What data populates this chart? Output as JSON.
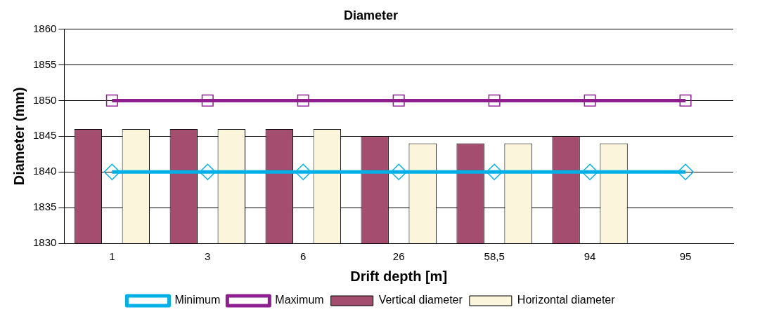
{
  "chart_data": {
    "type": "bar",
    "title": "Diameter",
    "xlabel": "Drift depth [m]",
    "ylabel": "Diameter (mm)",
    "categories": [
      "1",
      "3",
      "6",
      "26",
      "58,5",
      "94",
      "95"
    ],
    "series": [
      {
        "name": "Vertical diameter",
        "color": "#a44d6e",
        "values": [
          1846,
          1846,
          1846,
          1845,
          1844,
          1845,
          null
        ]
      },
      {
        "name": "Horizontal diameter",
        "color": "#faf5db",
        "values": [
          1846,
          1846,
          1846,
          1844,
          1844,
          1844,
          null
        ]
      },
      {
        "name": "Minimum",
        "type": "line",
        "color": "#00b0e6",
        "marker": "diamond",
        "values": [
          1840,
          1840,
          1840,
          1840,
          1840,
          1840,
          1840
        ]
      },
      {
        "name": "Maximum",
        "type": "line",
        "color": "#8e1f8e",
        "marker": "square",
        "values": [
          1850,
          1850,
          1850,
          1850,
          1850,
          1850,
          1850
        ]
      }
    ],
    "ylim": [
      1830,
      1860
    ],
    "yticks": [
      1830,
      1835,
      1840,
      1845,
      1850,
      1855,
      1860
    ],
    "grid": "y",
    "legend": "bottom"
  }
}
